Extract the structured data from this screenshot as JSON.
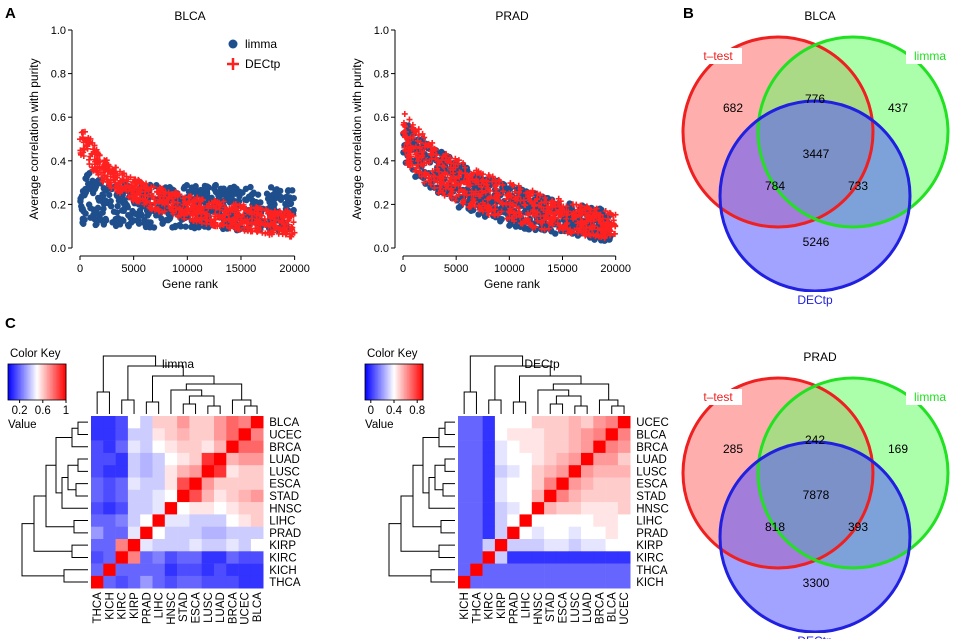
{
  "panel_labels": [
    "A",
    "B",
    "C"
  ],
  "chart_data": [
    {
      "type": "scatter",
      "title": "BLCA",
      "xlabel": "Gene rank",
      "ylabel": "Average correlation with purity",
      "xlim": [
        0,
        20500
      ],
      "ylim": [
        0,
        1
      ],
      "xticks": [
        0,
        5000,
        10000,
        15000,
        20000
      ],
      "yticks": [
        "0.0",
        "0.2",
        "0.4",
        "0.6",
        "0.8",
        "1.0"
      ],
      "legend": [
        {
          "name": "limma",
          "color": "#1f4e8c",
          "marker": "circle"
        },
        {
          "name": "DECtp",
          "color": "#ff2020",
          "marker": "plus"
        }
      ],
      "series": [
        {
          "name": "limma",
          "x": [
            0,
            500,
            1000,
            2000,
            3000,
            5000,
            7500,
            10000,
            12500,
            15000,
            17500,
            20000
          ],
          "y_low": [
            0.1,
            0.1,
            0.1,
            0.1,
            0.1,
            0.1,
            0.09,
            0.09,
            0.09,
            0.08,
            0.08,
            0.08
          ],
          "y_high": [
            0.34,
            0.36,
            0.34,
            0.32,
            0.31,
            0.3,
            0.29,
            0.29,
            0.29,
            0.28,
            0.28,
            0.27
          ]
        },
        {
          "name": "DECtp",
          "x": [
            0,
            500,
            1000,
            2000,
            3000,
            5000,
            7500,
            10000,
            12500,
            15000,
            17500,
            20000
          ],
          "y_low": [
            0.43,
            0.4,
            0.37,
            0.31,
            0.27,
            0.21,
            0.16,
            0.13,
            0.1,
            0.08,
            0.06,
            0.05
          ],
          "y_high": [
            0.58,
            0.55,
            0.5,
            0.43,
            0.38,
            0.32,
            0.28,
            0.24,
            0.22,
            0.2,
            0.18,
            0.17
          ]
        }
      ]
    },
    {
      "type": "scatter",
      "title": "PRAD",
      "xlabel": "Gene rank",
      "ylabel": "Average correlation with purity",
      "xlim": [
        0,
        20500
      ],
      "ylim": [
        0,
        1
      ],
      "xticks": [
        0,
        5000,
        10000,
        15000,
        20000
      ],
      "yticks": [
        "0.0",
        "0.2",
        "0.4",
        "0.6",
        "0.8",
        "1.0"
      ],
      "series": [
        {
          "name": "limma",
          "x": [
            0,
            500,
            1000,
            2000,
            3000,
            5000,
            7500,
            10000,
            12500,
            15000,
            17500,
            19500
          ],
          "y_low": [
            0.38,
            0.36,
            0.33,
            0.29,
            0.25,
            0.19,
            0.14,
            0.1,
            0.08,
            0.06,
            0.04,
            0.03
          ],
          "y_high": [
            0.6,
            0.58,
            0.54,
            0.5,
            0.46,
            0.4,
            0.34,
            0.29,
            0.25,
            0.21,
            0.19,
            0.18
          ]
        },
        {
          "name": "DECtp",
          "x": [
            0,
            500,
            1000,
            2000,
            3000,
            5000,
            7500,
            10000,
            12500,
            15000,
            17500,
            20000
          ],
          "y_low": [
            0.4,
            0.38,
            0.35,
            0.3,
            0.26,
            0.21,
            0.16,
            0.12,
            0.09,
            0.07,
            0.05,
            0.04
          ],
          "y_high": [
            0.66,
            0.62,
            0.58,
            0.52,
            0.47,
            0.41,
            0.35,
            0.3,
            0.26,
            0.22,
            0.19,
            0.16
          ]
        }
      ]
    },
    {
      "type": "venn",
      "title": "BLCA",
      "sets": [
        {
          "name": "t-test",
          "label": "t–test",
          "color": "#ee2020",
          "fill": "#ff6b6b"
        },
        {
          "name": "limma",
          "label": "limma",
          "color": "#22e022",
          "fill": "#66ff66"
        },
        {
          "name": "DECtp",
          "label": "DECtp",
          "color": "#2020e0",
          "fill": "#5555ff"
        }
      ],
      "regions": {
        "ttest_only": "682",
        "ttest_limma": "776",
        "limma_only": "437",
        "all": "3447",
        "ttest_dectp": "784",
        "limma_dectp": "733",
        "dectp_only": "5246"
      }
    },
    {
      "type": "venn",
      "title": "PRAD",
      "sets": [
        {
          "name": "t-test",
          "label": "t–test",
          "color": "#ee2020",
          "fill": "#ff6b6b"
        },
        {
          "name": "limma",
          "label": "limma",
          "color": "#22e022",
          "fill": "#66ff66"
        },
        {
          "name": "DECtp",
          "label": "DECtp",
          "color": "#2020e0",
          "fill": "#5555ff"
        }
      ],
      "regions": {
        "ttest_only": "285",
        "ttest_limma": "242",
        "limma_only": "169",
        "all": "7878",
        "ttest_dectp": "818",
        "limma_dectp": "393",
        "dectp_only": "3300"
      }
    },
    {
      "type": "heatmap",
      "title": "limma",
      "color_key": {
        "title": "Color Key",
        "value_label": "Value",
        "ticks": [
          "0.2",
          "0.6",
          "1"
        ],
        "tick_values": [
          0.2,
          0.6,
          1.0
        ],
        "range": [
          0.0,
          1.0
        ]
      },
      "rows": [
        "BLCA",
        "UCEC",
        "BRCA",
        "LUAD",
        "LUSC",
        "ESCA",
        "STAD",
        "HNSC",
        "LIHC",
        "PRAD",
        "KIRP",
        "KIRC",
        "KICH",
        "THCA"
      ],
      "cols": [
        "THCA",
        "KICH",
        "KIRC",
        "KIRP",
        "PRAD",
        "LIHC",
        "HNSC",
        "STAD",
        "ESCA",
        "LUSC",
        "LUAD",
        "BRCA",
        "UCEC",
        "BLCA"
      ],
      "values": [
        [
          0.1,
          0.1,
          0.15,
          0.5,
          0.4,
          0.6,
          0.6,
          0.7,
          0.6,
          0.6,
          0.7,
          0.8,
          0.75,
          1.0
        ],
        [
          0.1,
          0.1,
          0.15,
          0.4,
          0.4,
          0.55,
          0.6,
          0.65,
          0.6,
          0.6,
          0.7,
          0.8,
          1.0,
          0.75
        ],
        [
          0.15,
          0.1,
          0.2,
          0.45,
          0.4,
          0.5,
          0.55,
          0.6,
          0.6,
          0.55,
          0.65,
          1.0,
          0.8,
          0.8
        ],
        [
          0.15,
          0.15,
          0.1,
          0.4,
          0.35,
          0.4,
          0.5,
          0.55,
          0.6,
          0.9,
          1.0,
          0.65,
          0.7,
          0.7
        ],
        [
          0.15,
          0.1,
          0.1,
          0.4,
          0.35,
          0.4,
          0.55,
          0.65,
          0.7,
          1.0,
          0.9,
          0.55,
          0.6,
          0.6
        ],
        [
          0.2,
          0.15,
          0.2,
          0.45,
          0.4,
          0.4,
          0.55,
          0.85,
          1.0,
          0.7,
          0.6,
          0.6,
          0.6,
          0.6
        ],
        [
          0.2,
          0.15,
          0.2,
          0.4,
          0.4,
          0.45,
          0.5,
          1.0,
          0.85,
          0.65,
          0.55,
          0.6,
          0.65,
          0.7
        ],
        [
          0.15,
          0.1,
          0.15,
          0.4,
          0.4,
          0.45,
          1.0,
          0.5,
          0.55,
          0.55,
          0.5,
          0.55,
          0.6,
          0.6
        ],
        [
          0.2,
          0.2,
          0.25,
          0.4,
          0.5,
          1.0,
          0.45,
          0.45,
          0.4,
          0.4,
          0.4,
          0.5,
          0.55,
          0.6
        ],
        [
          0.3,
          0.2,
          0.2,
          0.45,
          1.0,
          0.5,
          0.4,
          0.4,
          0.4,
          0.35,
          0.35,
          0.4,
          0.4,
          0.4
        ],
        [
          0.2,
          0.2,
          0.75,
          1.0,
          0.45,
          0.4,
          0.4,
          0.4,
          0.45,
          0.4,
          0.4,
          0.45,
          0.4,
          0.5
        ],
        [
          0.15,
          0.2,
          1.0,
          0.75,
          0.2,
          0.25,
          0.15,
          0.2,
          0.2,
          0.1,
          0.1,
          0.2,
          0.15,
          0.15
        ],
        [
          0.2,
          1.0,
          0.2,
          0.2,
          0.2,
          0.2,
          0.1,
          0.15,
          0.15,
          0.1,
          0.15,
          0.1,
          0.1,
          0.1
        ],
        [
          1.0,
          0.2,
          0.15,
          0.2,
          0.3,
          0.2,
          0.15,
          0.2,
          0.2,
          0.15,
          0.15,
          0.15,
          0.1,
          0.1
        ]
      ]
    },
    {
      "type": "heatmap",
      "title": "DECtp",
      "color_key": {
        "title": "Color Key",
        "value_label": "Value",
        "ticks": [
          "0",
          "0.4",
          "0.8"
        ],
        "tick_values": [
          0.0,
          0.4,
          0.8
        ],
        "range": [
          -0.1,
          0.9
        ]
      },
      "rows": [
        "UCEC",
        "BLCA",
        "BRCA",
        "LUAD",
        "LUSC",
        "ESCA",
        "STAD",
        "HNSC",
        "LIHC",
        "PRAD",
        "KIRP",
        "KIRC",
        "THCA",
        "KICH"
      ],
      "cols": [
        "KICH",
        "THCA",
        "KIRC",
        "KIRP",
        "PRAD",
        "LIHC",
        "HNSC",
        "STAD",
        "ESCA",
        "LUSC",
        "LUAD",
        "BRCA",
        "BLCA",
        "UCEC"
      ],
      "values": [
        [
          0.1,
          0.1,
          0.0,
          0.4,
          0.4,
          0.4,
          0.5,
          0.5,
          0.5,
          0.55,
          0.5,
          0.6,
          0.65,
          0.9
        ],
        [
          0.1,
          0.1,
          0.0,
          0.4,
          0.45,
          0.45,
          0.45,
          0.5,
          0.5,
          0.55,
          0.6,
          0.65,
          0.9,
          0.65
        ],
        [
          0.1,
          0.1,
          0.0,
          0.35,
          0.4,
          0.45,
          0.45,
          0.5,
          0.5,
          0.55,
          0.6,
          0.9,
          0.65,
          0.6
        ],
        [
          0.1,
          0.1,
          0.0,
          0.35,
          0.4,
          0.4,
          0.45,
          0.5,
          0.55,
          0.6,
          0.9,
          0.6,
          0.6,
          0.5
        ],
        [
          0.1,
          0.1,
          0.0,
          0.3,
          0.35,
          0.4,
          0.5,
          0.55,
          0.6,
          0.9,
          0.6,
          0.55,
          0.55,
          0.55
        ],
        [
          0.1,
          0.1,
          0.0,
          0.35,
          0.4,
          0.4,
          0.5,
          0.65,
          0.9,
          0.6,
          0.55,
          0.5,
          0.5,
          0.5
        ],
        [
          0.1,
          0.1,
          0.0,
          0.35,
          0.4,
          0.4,
          0.55,
          0.9,
          0.65,
          0.55,
          0.5,
          0.5,
          0.5,
          0.5
        ],
        [
          0.1,
          0.1,
          0.0,
          0.3,
          0.35,
          0.4,
          0.9,
          0.55,
          0.5,
          0.5,
          0.45,
          0.45,
          0.45,
          0.5
        ],
        [
          0.1,
          0.1,
          0.0,
          0.3,
          0.4,
          0.9,
          0.4,
          0.4,
          0.4,
          0.4,
          0.4,
          0.45,
          0.45,
          0.4
        ],
        [
          0.1,
          0.1,
          0.0,
          0.3,
          0.9,
          0.4,
          0.35,
          0.4,
          0.4,
          0.35,
          0.4,
          0.4,
          0.45,
          0.4
        ],
        [
          0.1,
          0.1,
          0.3,
          0.9,
          0.3,
          0.3,
          0.3,
          0.35,
          0.35,
          0.3,
          0.35,
          0.35,
          0.4,
          0.4
        ],
        [
          0.1,
          0.1,
          0.9,
          0.3,
          0.0,
          0.0,
          0.0,
          0.0,
          0.0,
          0.0,
          0.0,
          0.0,
          0.0,
          0.0
        ],
        [
          0.1,
          0.9,
          0.1,
          0.1,
          0.1,
          0.1,
          0.1,
          0.1,
          0.1,
          0.1,
          0.1,
          0.1,
          0.1,
          0.1
        ],
        [
          0.9,
          0.1,
          0.1,
          0.1,
          0.1,
          0.1,
          0.1,
          0.1,
          0.1,
          0.1,
          0.1,
          0.1,
          0.1,
          0.1
        ]
      ]
    }
  ]
}
